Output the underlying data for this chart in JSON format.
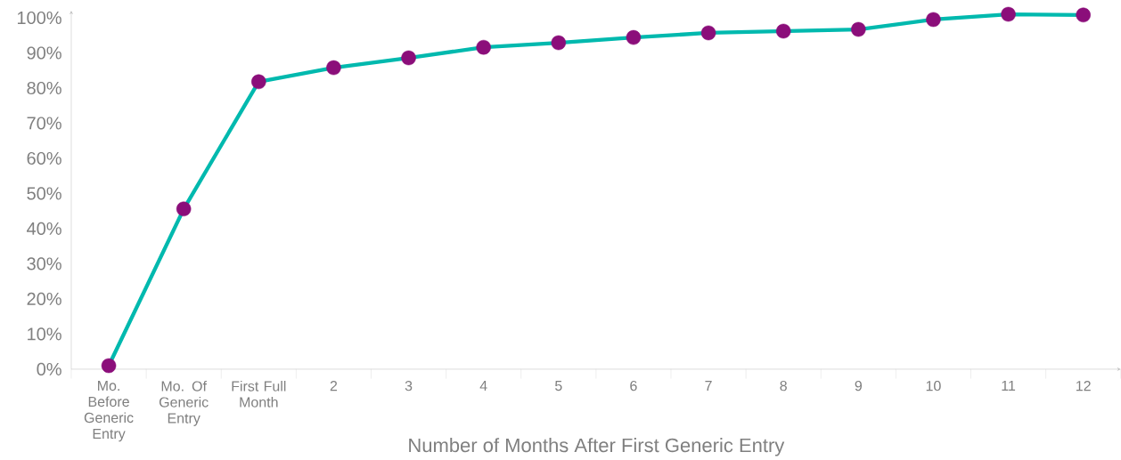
{
  "chart_data": {
    "type": "line",
    "xlabel": "Number of Months After First Generic Entry",
    "categories": [
      "Mo. Before Generic Entry",
      "Mo. Of Generic Entry",
      "First Full Month",
      "2",
      "3",
      "4",
      "5",
      "6",
      "7",
      "8",
      "9",
      "10",
      "11",
      "12"
    ],
    "series": [
      {
        "color": "#00b9ae",
        "colors": [
          "#8b0e7a",
          "#8b0e7a",
          "#8b0e7a",
          "#8b0e7a",
          "#8b0e7a",
          "#8b0e7a",
          "#8b0e7a",
          "#8b0e7a",
          "#8b0e7a",
          "#8b0e7a",
          "#8b0e7a",
          "#8b0e7a",
          "#8b0e7a",
          "#8b0e7a"
        ],
        "values": [
          1.0,
          45.6,
          81.8,
          85.8,
          88.6,
          91.6,
          92.9,
          94.4,
          95.7,
          96.2,
          96.7,
          99.5,
          101.0,
          100.8
        ]
      }
    ],
    "marker": "circle",
    "line_style": "solid",
    "ylim": [
      0,
      102
    ],
    "yticks": [
      {
        "value": 0,
        "label": "0%"
      },
      {
        "value": 10,
        "label": "10%"
      },
      {
        "value": 20,
        "label": "20%"
      },
      {
        "value": 30,
        "label": "30%"
      },
      {
        "value": 40,
        "label": "40%"
      },
      {
        "value": 50,
        "label": "50%"
      },
      {
        "value": 60,
        "label": "60%"
      },
      {
        "value": 70,
        "label": "70%"
      },
      {
        "value": 80,
        "label": "80%"
      },
      {
        "value": 90,
        "label": "90%"
      },
      {
        "value": 100,
        "label": "100%"
      }
    ]
  }
}
